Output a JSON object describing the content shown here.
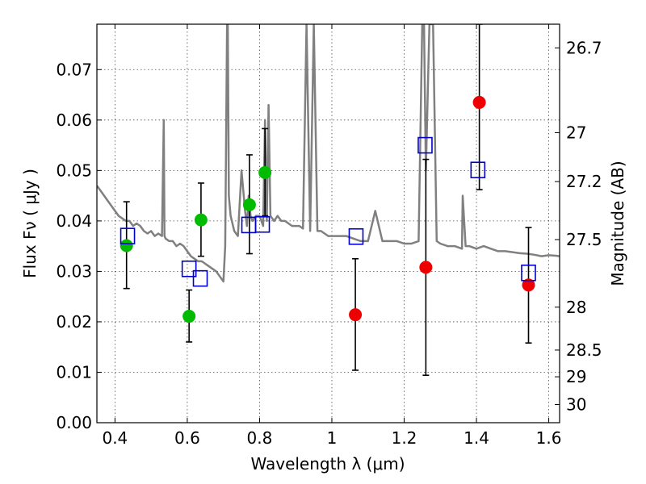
{
  "chart_data": {
    "type": "scatter",
    "title": "",
    "xlabel": "Wavelength  λ (μm)",
    "ylabel": "Flux  Fν  ( μJy )",
    "ylabel_right": "Magnitude (AB)",
    "xlim": [
      0.35,
      1.63
    ],
    "ylim": [
      0.0,
      0.079
    ],
    "grid": true,
    "x_ticks": [
      0.4,
      0.6,
      0.8,
      1.0,
      1.2,
      1.4,
      1.6
    ],
    "x_tick_labels": [
      "0.4",
      "0.6",
      "0.8",
      "1",
      "1.2",
      "1.4",
      "1.6"
    ],
    "y_ticks": [
      0.0,
      0.01,
      0.02,
      0.03,
      0.04,
      0.05,
      0.06,
      0.07
    ],
    "y_tick_labels": [
      "0.00",
      "0.01",
      "0.02",
      "0.03",
      "0.04",
      "0.05",
      "0.06",
      "0.07"
    ],
    "right_ticks": [
      {
        "label": "26.7",
        "flux": 0.0743
      },
      {
        "label": "27",
        "flux": 0.0575
      },
      {
        "label": "27.2",
        "flux": 0.0478
      },
      {
        "label": "27.5",
        "flux": 0.0363
      },
      {
        "label": "28",
        "flux": 0.0229
      },
      {
        "label": "28.5",
        "flux": 0.0144
      },
      {
        "label": "29",
        "flux": 0.0091
      },
      {
        "label": "30",
        "flux": 0.0036
      }
    ],
    "colors": {
      "spectrum": "#808080",
      "green": "#00bb00",
      "red": "#ee0000",
      "model": "#0000cc",
      "errorbar": "#000000"
    },
    "series": [
      {
        "name": "model template spectrum",
        "kind": "line",
        "x": [
          0.35,
          0.36,
          0.37,
          0.38,
          0.39,
          0.4,
          0.41,
          0.42,
          0.43,
          0.44,
          0.45,
          0.46,
          0.47,
          0.48,
          0.49,
          0.5,
          0.51,
          0.52,
          0.53,
          0.535,
          0.537,
          0.54,
          0.55,
          0.56,
          0.57,
          0.58,
          0.59,
          0.6,
          0.61,
          0.62,
          0.63,
          0.64,
          0.65,
          0.66,
          0.67,
          0.68,
          0.69,
          0.7,
          0.705,
          0.71,
          0.712,
          0.715,
          0.72,
          0.73,
          0.74,
          0.75,
          0.76,
          0.765,
          0.77,
          0.775,
          0.78,
          0.79,
          0.8,
          0.81,
          0.815,
          0.82,
          0.825,
          0.83,
          0.84,
          0.85,
          0.86,
          0.87,
          0.88,
          0.89,
          0.9,
          0.91,
          0.92,
          0.93,
          0.94,
          0.95,
          0.96,
          0.97,
          0.98,
          0.99,
          1.0,
          1.02,
          1.04,
          1.06,
          1.08,
          1.1,
          1.12,
          1.14,
          1.16,
          1.18,
          1.2,
          1.22,
          1.24,
          1.25,
          1.255,
          1.26,
          1.27,
          1.28,
          1.29,
          1.3,
          1.32,
          1.34,
          1.36,
          1.362,
          1.37,
          1.38,
          1.4,
          1.42,
          1.44,
          1.46,
          1.48,
          1.5,
          1.52,
          1.54,
          1.56,
          1.58,
          1.6,
          1.62,
          1.63
        ],
        "y": [
          0.047,
          0.046,
          0.045,
          0.044,
          0.043,
          0.042,
          0.041,
          0.0405,
          0.04,
          0.04,
          0.039,
          0.0395,
          0.039,
          0.038,
          0.0375,
          0.038,
          0.037,
          0.0375,
          0.037,
          0.06,
          0.037,
          0.0365,
          0.036,
          0.036,
          0.035,
          0.0355,
          0.035,
          0.034,
          0.033,
          0.0325,
          0.032,
          0.032,
          0.0315,
          0.031,
          0.0305,
          0.03,
          0.029,
          0.028,
          0.035,
          0.079,
          0.079,
          0.045,
          0.041,
          0.038,
          0.037,
          0.05,
          0.042,
          0.039,
          0.045,
          0.041,
          0.04,
          0.041,
          0.041,
          0.039,
          0.06,
          0.04,
          0.063,
          0.041,
          0.04,
          0.041,
          0.04,
          0.04,
          0.0395,
          0.039,
          0.039,
          0.039,
          0.0385,
          0.079,
          0.038,
          0.079,
          0.038,
          0.038,
          0.0375,
          0.037,
          0.037,
          0.037,
          0.037,
          0.0365,
          0.036,
          0.036,
          0.042,
          0.036,
          0.036,
          0.036,
          0.0355,
          0.0355,
          0.036,
          0.079,
          0.079,
          0.05,
          0.079,
          0.079,
          0.036,
          0.0355,
          0.035,
          0.035,
          0.0345,
          0.045,
          0.035,
          0.035,
          0.0345,
          0.035,
          0.0345,
          0.034,
          0.034,
          0.0338,
          0.0336,
          0.0335,
          0.0333,
          0.033,
          0.0332,
          0.0331,
          0.033
        ]
      },
      {
        "name": "observed (green)",
        "kind": "points",
        "x": [
          0.432,
          0.605,
          0.638,
          0.772,
          0.815
        ],
        "y": [
          0.0351,
          0.0211,
          0.0402,
          0.0432,
          0.0496
        ],
        "err_low": [
          0.0266,
          0.016,
          0.033,
          0.0335,
          0.041
        ],
        "err_high": [
          0.0438,
          0.0263,
          0.0475,
          0.0531,
          0.0583
        ]
      },
      {
        "name": "observed (red)",
        "kind": "points",
        "x": [
          1.065,
          1.26,
          1.408,
          1.544
        ],
        "y": [
          0.0214,
          0.0308,
          0.0635,
          0.0273
        ],
        "err_low": [
          0.0104,
          0.0094,
          0.0462,
          0.0158
        ],
        "err_high": [
          0.0325,
          0.0522,
          0.079,
          0.0387
        ]
      },
      {
        "name": "model photometry",
        "kind": "squares",
        "x": [
          0.435,
          0.605,
          0.636,
          0.77,
          0.808,
          1.067,
          1.258,
          1.404,
          1.544
        ],
        "y": [
          0.037,
          0.0305,
          0.0286,
          0.0392,
          0.0393,
          0.0369,
          0.055,
          0.0501,
          0.0297
        ]
      }
    ]
  }
}
